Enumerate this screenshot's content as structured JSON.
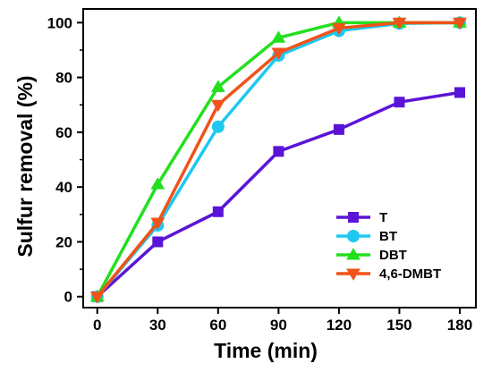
{
  "chart_data": {
    "type": "line",
    "xlabel": "Time (min)",
    "ylabel": "Sulfur removal (%)",
    "xlim": [
      -7,
      188
    ],
    "ylim": [
      -4,
      105
    ],
    "xticks": [
      "0",
      "30",
      "60",
      "90",
      "120",
      "150",
      "180"
    ],
    "yticks": [
      "0",
      "20",
      "40",
      "60",
      "80",
      "100"
    ],
    "x": [
      0,
      30,
      60,
      90,
      120,
      150,
      180
    ],
    "legend_position": "bottom-right",
    "grid": false,
    "series": [
      {
        "name": "T",
        "color": "#5B14D6",
        "marker": "square",
        "values": [
          0,
          20,
          31,
          53,
          61,
          71,
          74.5
        ]
      },
      {
        "name": "BT",
        "color": "#1EC8F0",
        "marker": "circle",
        "values": [
          0,
          26,
          62,
          88,
          97,
          99.7,
          100
        ]
      },
      {
        "name": "DBT",
        "color": "#22E01E",
        "marker": "triangle-up",
        "values": [
          0,
          41,
          76.5,
          94.5,
          100,
          100,
          100
        ]
      },
      {
        "name": "4,6-DMBT",
        "color": "#F0521A",
        "marker": "triangle-down",
        "values": [
          0,
          27,
          70,
          89,
          98,
          100,
          100
        ]
      }
    ]
  }
}
